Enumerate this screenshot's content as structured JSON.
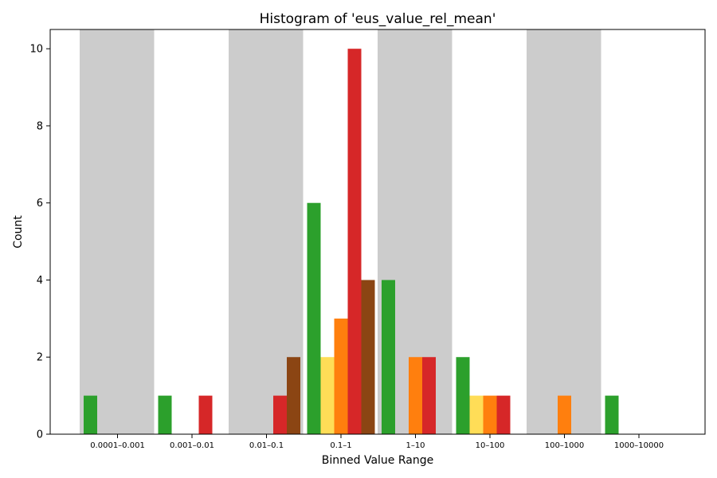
{
  "chart_data": {
    "type": "bar",
    "title": "Histogram of 'eus_value_rel_mean'",
    "xlabel": "Binned Value Range",
    "ylabel": "Count",
    "ylim": [
      0,
      10.5
    ],
    "yticks": [
      0,
      2,
      4,
      6,
      8,
      10
    ],
    "categories": [
      "0.0001–0.001",
      "0.001–0.01",
      "0.01–0.1",
      "0.1–1",
      "1–10",
      "10–100",
      "100–1000",
      "1000–10000"
    ],
    "shaded_bins": [
      0,
      2,
      4,
      6
    ],
    "shade_color": "#cccccc",
    "series": [
      {
        "color": "#2ca02c",
        "values": [
          1,
          1,
          0,
          6,
          4,
          2,
          0,
          1
        ]
      },
      {
        "color": "#ffdd57",
        "values": [
          0,
          0,
          0,
          2,
          0,
          1,
          0,
          0
        ]
      },
      {
        "color": "#ff7f0e",
        "values": [
          0,
          0,
          0,
          3,
          2,
          1,
          1,
          0
        ]
      },
      {
        "color": "#d62728",
        "values": [
          0,
          1,
          1,
          10,
          2,
          1,
          0,
          0
        ]
      },
      {
        "color": "#8b4513",
        "values": [
          0,
          0,
          2,
          4,
          0,
          0,
          0,
          0
        ]
      }
    ],
    "grid": false,
    "legend": "none"
  }
}
